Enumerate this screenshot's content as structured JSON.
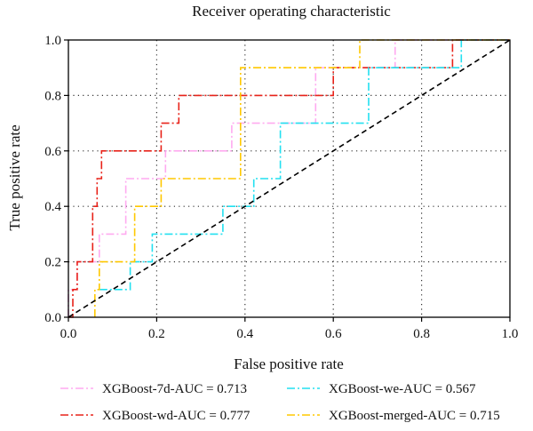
{
  "chart_data": {
    "type": "line",
    "title": "Receiver operating characteristic",
    "xlabel": "False positive rate",
    "ylabel": "True positive rate",
    "xlim": [
      0.0,
      1.0
    ],
    "ylim": [
      0.0,
      1.0
    ],
    "x_ticks": [
      "0.0",
      "0.2",
      "0.4",
      "0.6",
      "0.8",
      "1.0"
    ],
    "y_ticks": [
      "0.0",
      "0.2",
      "0.4",
      "0.6",
      "0.8",
      "1.0"
    ],
    "grid": true,
    "legend_position": "bottom",
    "series": [
      {
        "name": "XGBoost-7d-AUC = 0.713",
        "color": "#ffaaf0",
        "dash": "dash-dot",
        "x": [
          0.0,
          0.0,
          0.02,
          0.02,
          0.07,
          0.07,
          0.08,
          0.08,
          0.13,
          0.13,
          0.17,
          0.17,
          0.22,
          0.22,
          0.37,
          0.37,
          0.56,
          0.56,
          0.74,
          0.74,
          0.88,
          0.88,
          1.0
        ],
        "y": [
          0.0,
          0.1,
          0.1,
          0.2,
          0.2,
          0.3,
          0.3,
          0.3,
          0.3,
          0.5,
          0.5,
          0.5,
          0.5,
          0.6,
          0.6,
          0.7,
          0.7,
          0.9,
          0.9,
          1.0,
          1.0,
          1.0,
          1.0
        ]
      },
      {
        "name": "XGBoost-wd-AUC = 0.777",
        "color": "#e8231a",
        "dash": "dash-dot",
        "x": [
          0.0,
          0.01,
          0.01,
          0.02,
          0.02,
          0.055,
          0.055,
          0.065,
          0.065,
          0.075,
          0.075,
          0.21,
          0.21,
          0.25,
          0.25,
          0.6,
          0.6,
          0.87,
          0.87,
          0.89,
          0.89,
          1.0
        ],
        "y": [
          0.0,
          0.0,
          0.1,
          0.1,
          0.2,
          0.2,
          0.4,
          0.4,
          0.5,
          0.5,
          0.6,
          0.6,
          0.7,
          0.7,
          0.8,
          0.8,
          0.9,
          0.9,
          1.0,
          1.0,
          1.0,
          1.0
        ]
      },
      {
        "name": "XGBoost-we-AUC = 0.567",
        "color": "#22e0f0",
        "dash": "dash-dot",
        "x": [
          0.07,
          0.11,
          0.11,
          0.14,
          0.14,
          0.19,
          0.19,
          0.35,
          0.35,
          0.41,
          0.41,
          0.42,
          0.42,
          0.48,
          0.48,
          0.68,
          0.68,
          0.89,
          0.89,
          1.0
        ],
        "y": [
          0.1,
          0.1,
          0.1,
          0.1,
          0.2,
          0.2,
          0.3,
          0.3,
          0.4,
          0.4,
          0.4,
          0.4,
          0.5,
          0.5,
          0.7,
          0.7,
          0.9,
          0.9,
          1.0,
          1.0
        ]
      },
      {
        "name": "XGBoost-merged-AUC = 0.715",
        "color": "#ffc800",
        "dash": "dash-dot",
        "x": [
          0.06,
          0.06,
          0.07,
          0.07,
          0.15,
          0.15,
          0.21,
          0.21,
          0.39,
          0.39,
          0.66,
          0.66,
          1.0
        ],
        "y": [
          0.0,
          0.1,
          0.1,
          0.2,
          0.2,
          0.4,
          0.4,
          0.5,
          0.5,
          0.9,
          0.9,
          1.0,
          1.0
        ]
      }
    ],
    "reference_line": {
      "x": [
        0.0,
        1.0
      ],
      "y": [
        0.0,
        1.0
      ],
      "color": "#000000",
      "dash": "dashed"
    }
  }
}
